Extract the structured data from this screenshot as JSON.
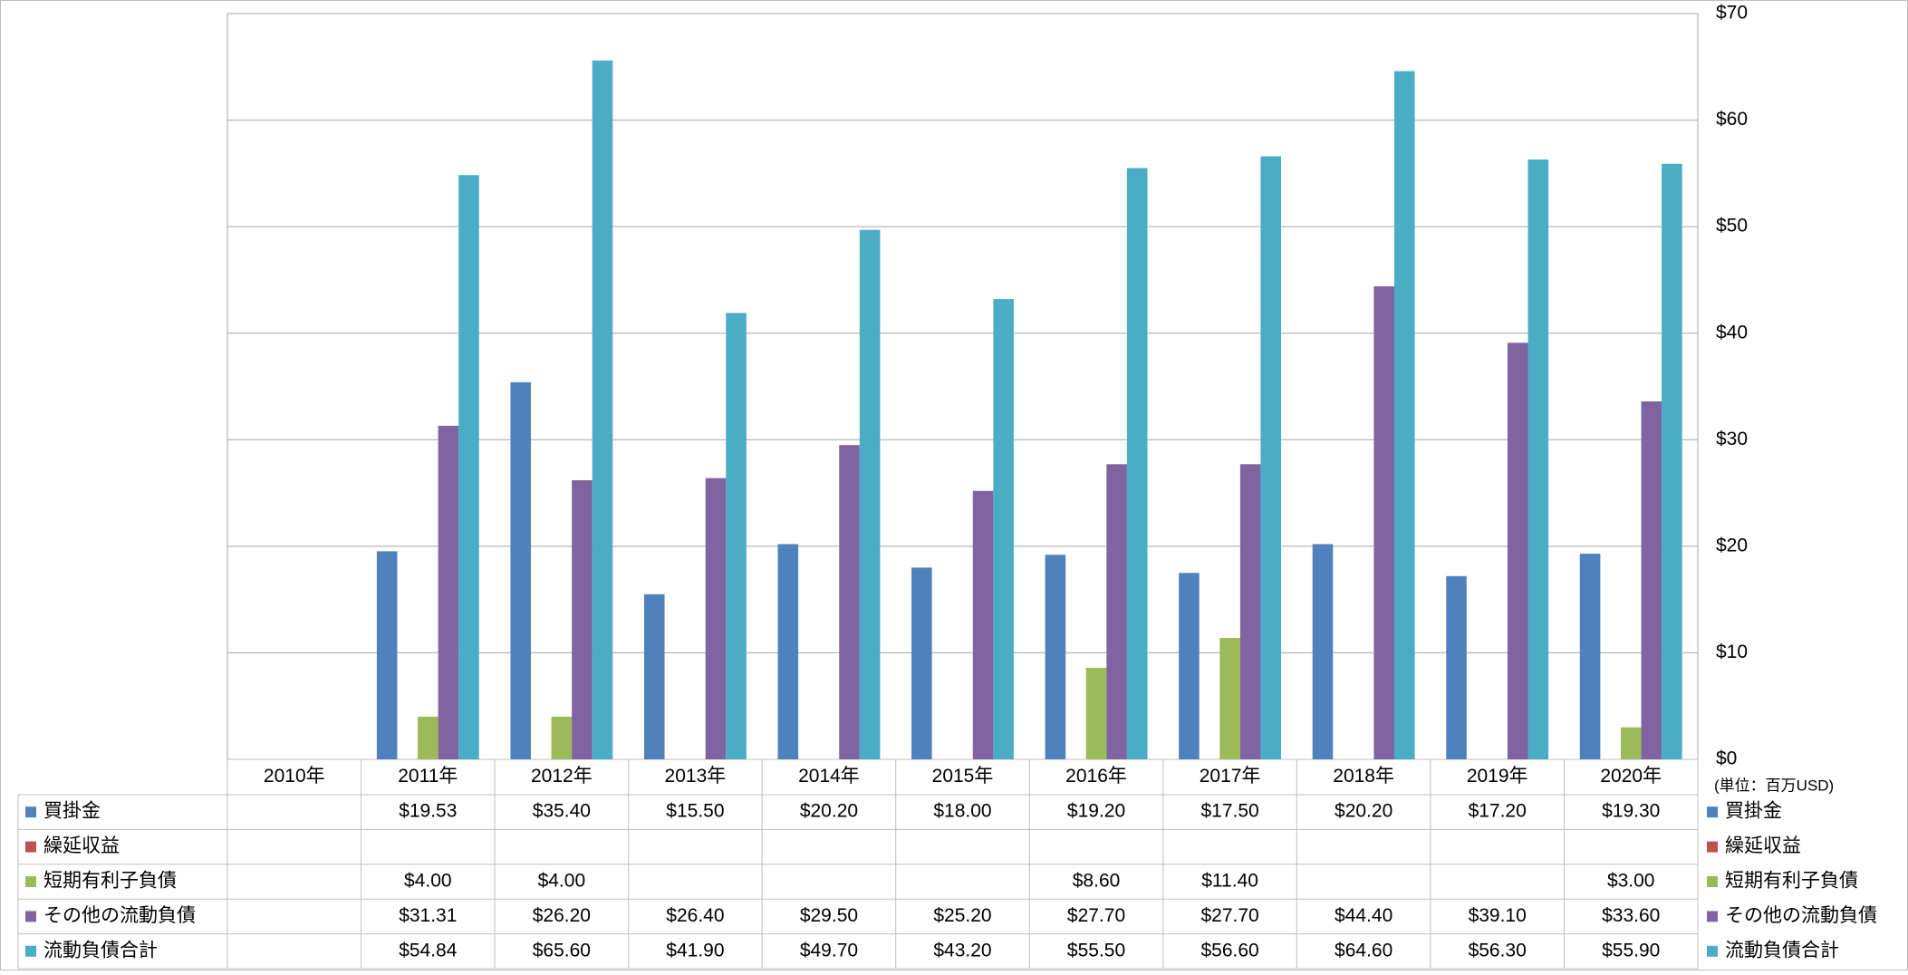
{
  "chart_data": {
    "type": "bar",
    "categories": [
      "2010年",
      "2011年",
      "2012年",
      "2013年",
      "2014年",
      "2015年",
      "2016年",
      "2017年",
      "2018年",
      "2019年",
      "2020年"
    ],
    "series": [
      {
        "name": "買掛金",
        "color": "#4f81bd",
        "values": [
          null,
          19.53,
          35.4,
          15.5,
          20.2,
          18.0,
          19.2,
          17.5,
          20.2,
          17.2,
          19.3
        ],
        "value_labels": [
          null,
          "$19.53",
          "$35.40",
          "$15.50",
          "$20.20",
          "$18.00",
          "$19.20",
          "$17.50",
          "$20.20",
          "$17.20",
          "$19.30"
        ]
      },
      {
        "name": "繰延収益",
        "color": "#c0504d",
        "values": [
          null,
          null,
          null,
          null,
          null,
          null,
          null,
          null,
          null,
          null,
          null
        ],
        "value_labels": [
          null,
          null,
          null,
          null,
          null,
          null,
          null,
          null,
          null,
          null,
          null
        ]
      },
      {
        "name": "短期有利子負債",
        "color": "#9bbb59",
        "values": [
          null,
          4.0,
          4.0,
          null,
          null,
          null,
          8.6,
          11.4,
          null,
          null,
          3.0
        ],
        "value_labels": [
          null,
          "$4.00",
          "$4.00",
          null,
          null,
          null,
          "$8.60",
          "$11.40",
          null,
          null,
          "$3.00"
        ]
      },
      {
        "name": "その他の流動負債",
        "color": "#8064a2",
        "values": [
          null,
          31.31,
          26.2,
          26.4,
          29.5,
          25.2,
          27.7,
          27.7,
          44.4,
          39.1,
          33.6
        ],
        "value_labels": [
          null,
          "$31.31",
          "$26.20",
          "$26.40",
          "$29.50",
          "$25.20",
          "$27.70",
          "$27.70",
          "$44.40",
          "$39.10",
          "$33.60"
        ]
      },
      {
        "name": "流動負債合計",
        "color": "#4bacc6",
        "values": [
          null,
          54.84,
          65.6,
          41.9,
          49.7,
          43.2,
          55.5,
          56.6,
          64.6,
          56.3,
          55.9
        ],
        "value_labels": [
          null,
          "$54.84",
          "$65.60",
          "$41.90",
          "$49.70",
          "$43.20",
          "$55.50",
          "$56.60",
          "$64.60",
          "$56.30",
          "$55.90"
        ]
      }
    ],
    "ylim": [
      0,
      70
    ],
    "yticks": [
      {
        "value": 0,
        "label": "$0"
      },
      {
        "value": 10,
        "label": "$10"
      },
      {
        "value": 20,
        "label": "$20"
      },
      {
        "value": 30,
        "label": "$30"
      },
      {
        "value": 40,
        "label": "$40"
      },
      {
        "value": 50,
        "label": "$50"
      },
      {
        "value": 60,
        "label": "$60"
      },
      {
        "value": 70,
        "label": "$70"
      }
    ],
    "y_axis_side": "right",
    "grid": true,
    "unit_note": "(単位：百万USD)"
  }
}
